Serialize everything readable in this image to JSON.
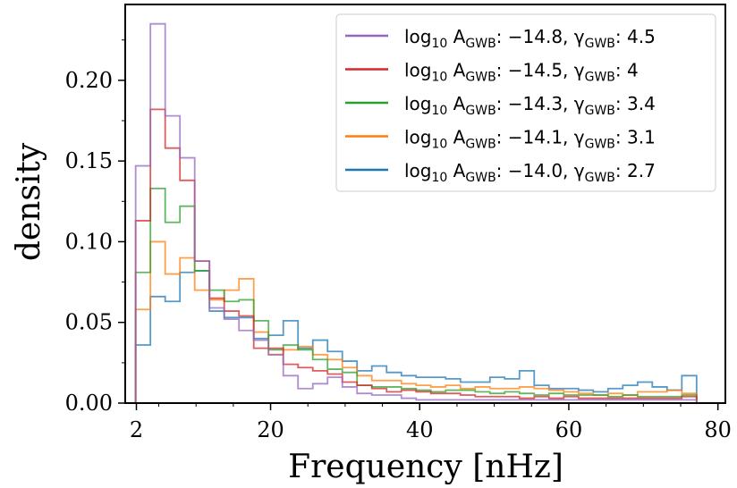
{
  "chart_data": {
    "type": "histogram-step",
    "xlabel": "Frequency [nHz]",
    "ylabel": "density",
    "xlim": [
      0.5,
      81
    ],
    "ylim": [
      0,
      0.247
    ],
    "x_ticks": [
      2,
      20,
      40,
      60,
      80
    ],
    "y_ticks": [
      0.0,
      0.05,
      0.1,
      0.15,
      0.2
    ],
    "y_tick_labels": [
      "0.00",
      "0.05",
      "0.10",
      "0.15",
      "0.20"
    ],
    "bin_start": 1.9,
    "bin_width": 1.98,
    "legend_position": "upper right",
    "series": [
      {
        "name": "log10 A_GWB: −14.8, γ_GWB: 4.5",
        "legend": {
          "main": "log",
          "sub1": "10",
          "a": " A",
          "sub2": "GWB",
          "mid": ": −14.8, γ",
          "sub3": "GWB",
          "tail": ": 4.5"
        },
        "color": "#9467bd",
        "values": [
          0.147,
          0.235,
          0.178,
          0.152,
          0.088,
          0.059,
          0.052,
          0.045,
          0.039,
          0.03,
          0.017,
          0.009,
          0.012,
          0.016,
          0.01,
          0.006,
          0.005,
          0.005,
          0.003,
          0.002,
          0.002,
          0.002,
          0.002,
          0.002,
          0.002,
          0.002,
          0.002,
          0.002,
          0.002,
          0.002,
          0.002,
          0.002,
          0.002,
          0.002,
          0.002,
          0.002,
          0.002,
          0.002
        ]
      },
      {
        "name": "log10 A_GWB: −14.5, γ_GWB: 4",
        "legend": {
          "main": "log",
          "sub1": "10",
          "a": " A",
          "sub2": "GWB",
          "mid": ": −14.5, γ",
          "sub3": "GWB",
          "tail": ": 4"
        },
        "color": "#d62728",
        "values": [
          0.113,
          0.182,
          0.158,
          0.138,
          0.088,
          0.065,
          0.057,
          0.054,
          0.034,
          0.034,
          0.024,
          0.022,
          0.02,
          0.018,
          0.013,
          0.011,
          0.009,
          0.007,
          0.008,
          0.007,
          0.006,
          0.006,
          0.005,
          0.004,
          0.004,
          0.004,
          0.003,
          0.004,
          0.003,
          0.004,
          0.003,
          0.003,
          0.003,
          0.003,
          0.003,
          0.003,
          0.003,
          0.004
        ]
      },
      {
        "name": "log10 A_GWB: −14.3, γ_GWB: 3.4",
        "legend": {
          "main": "log",
          "sub1": "10",
          "a": " A",
          "sub2": "GWB",
          "mid": ": −14.3, γ",
          "sub3": "GWB",
          "tail": ": 3.4"
        },
        "color": "#2ca02c",
        "values": [
          0.081,
          0.133,
          0.112,
          0.122,
          0.082,
          0.07,
          0.063,
          0.064,
          0.051,
          0.033,
          0.036,
          0.033,
          0.027,
          0.021,
          0.019,
          0.011,
          0.01,
          0.01,
          0.009,
          0.008,
          0.007,
          0.008,
          0.008,
          0.007,
          0.006,
          0.007,
          0.006,
          0.005,
          0.006,
          0.005,
          0.005,
          0.005,
          0.004,
          0.005,
          0.004,
          0.004,
          0.004,
          0.005
        ]
      },
      {
        "name": "log10 A_GWB: −14.1, γ_GWB: 3.1",
        "legend": {
          "main": "log",
          "sub1": "10",
          "a": " A",
          "sub2": "GWB",
          "mid": ": −14.1, γ",
          "sub3": "GWB",
          "tail": ": 3.1"
        },
        "color": "#ff7f0e",
        "values": [
          0.058,
          0.1,
          0.08,
          0.09,
          0.07,
          0.064,
          0.07,
          0.077,
          0.044,
          0.03,
          0.033,
          0.035,
          0.03,
          0.027,
          0.022,
          0.017,
          0.014,
          0.014,
          0.012,
          0.011,
          0.01,
          0.011,
          0.009,
          0.01,
          0.009,
          0.009,
          0.01,
          0.009,
          0.008,
          0.007,
          0.006,
          0.005,
          0.006,
          0.005,
          0.007,
          0.007,
          0.008,
          0.006
        ]
      },
      {
        "name": "log10 A_GWB: −14.0, γ_GWB: 2.7",
        "legend": {
          "main": "log",
          "sub1": "10",
          "a": " A",
          "sub2": "GWB",
          "mid": ": −14.0, γ",
          "sub3": "GWB",
          "tail": ": 2.7"
        },
        "color": "#1f77b4",
        "values": [
          0.036,
          0.066,
          0.063,
          0.081,
          0.082,
          0.057,
          0.053,
          0.053,
          0.04,
          0.042,
          0.051,
          0.034,
          0.039,
          0.032,
          0.026,
          0.02,
          0.023,
          0.019,
          0.017,
          0.016,
          0.016,
          0.015,
          0.013,
          0.013,
          0.016,
          0.015,
          0.02,
          0.011,
          0.009,
          0.009,
          0.008,
          0.007,
          0.009,
          0.011,
          0.013,
          0.01,
          0.008,
          0.017
        ]
      }
    ]
  }
}
